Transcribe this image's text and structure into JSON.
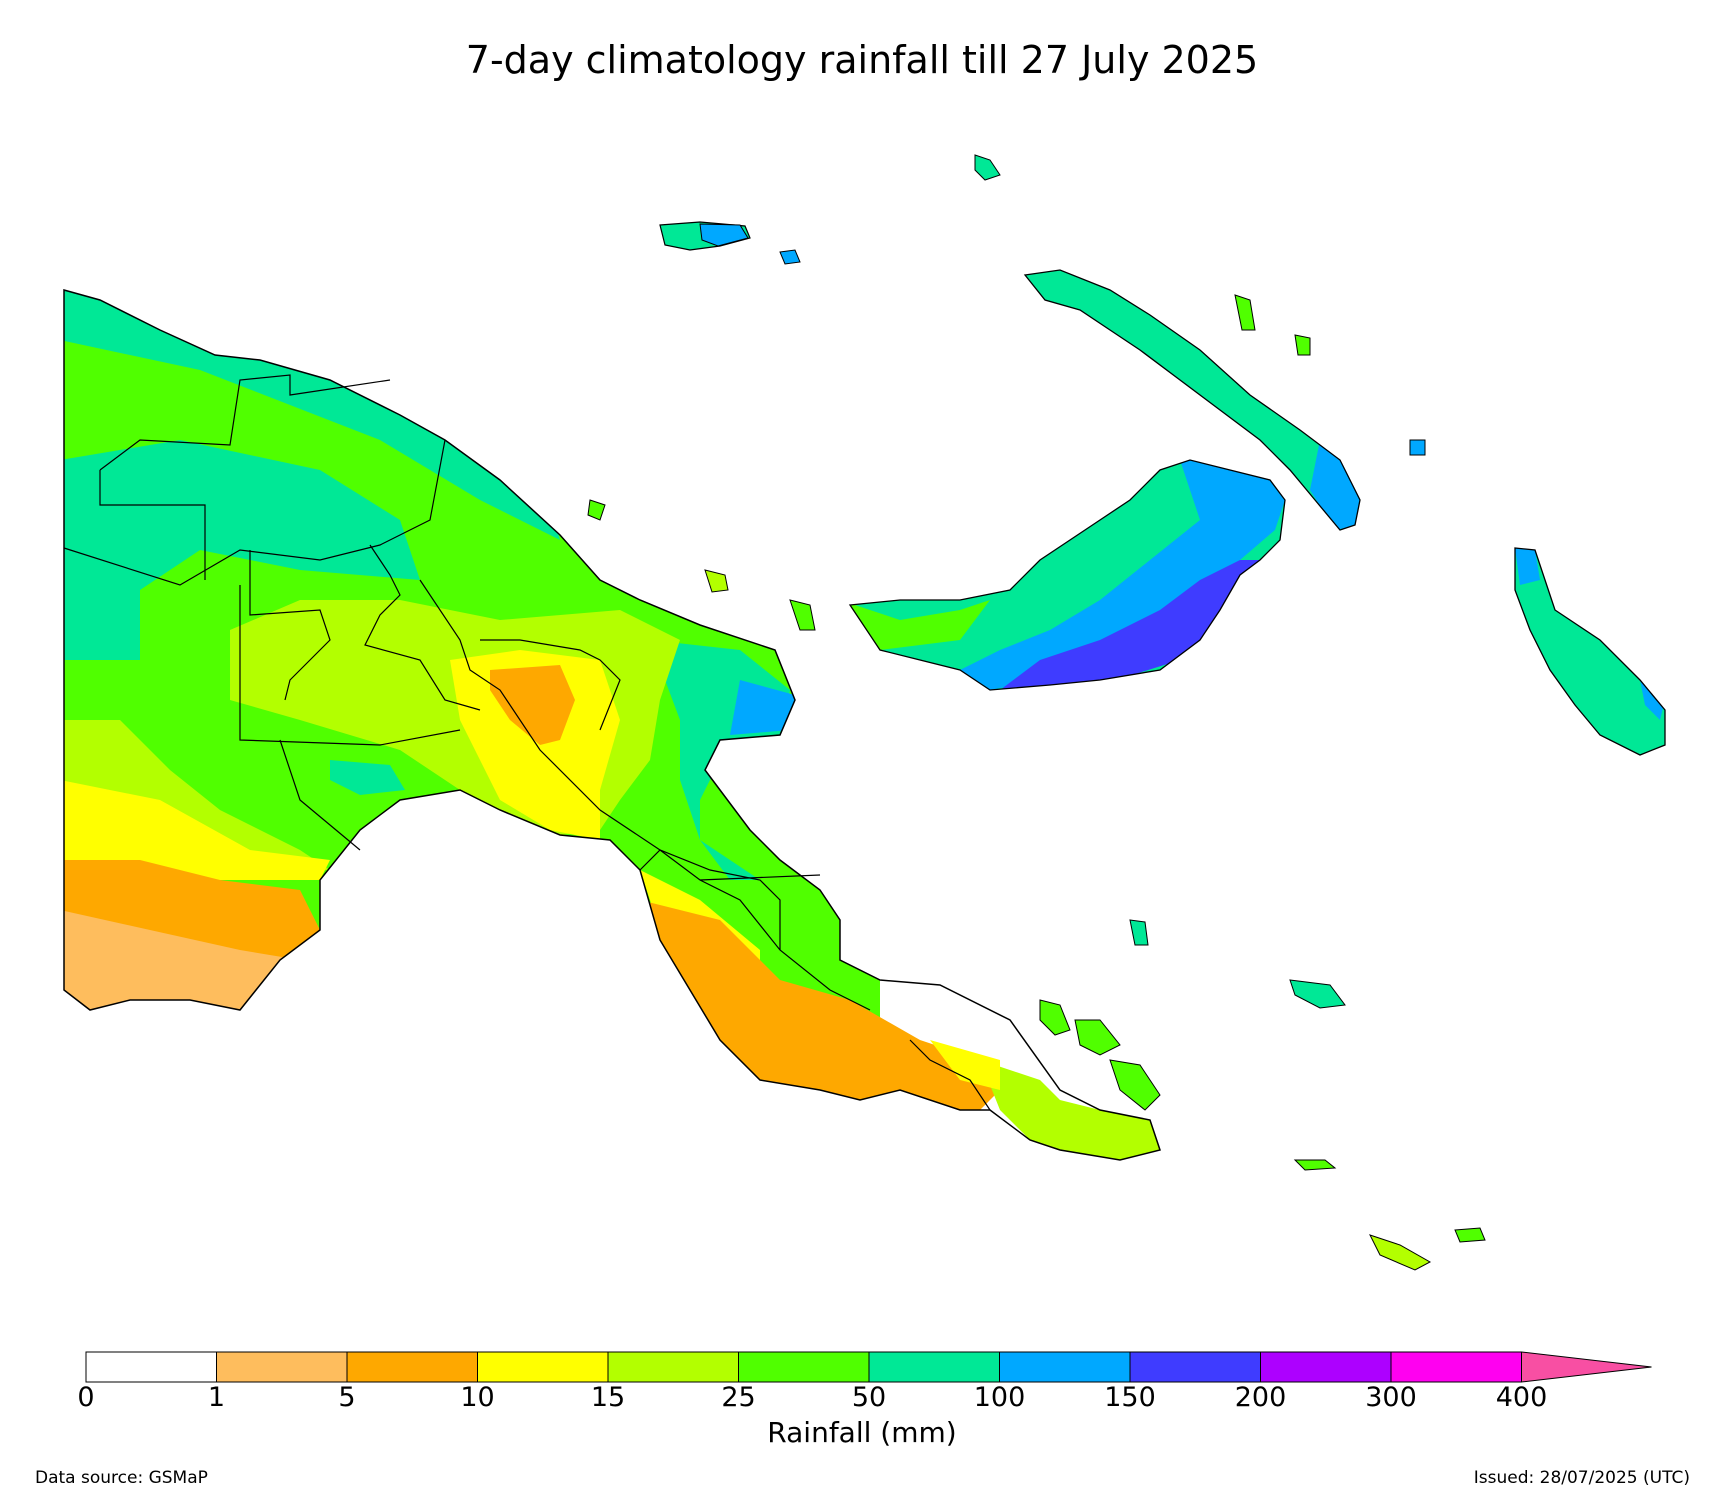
{
  "title": "7-day climatology rainfall till 27 July 2025",
  "colorbar": {
    "label": "Rainfall (mm)",
    "ticks": [
      "0",
      "1",
      "5",
      "10",
      "15",
      "25",
      "50",
      "100",
      "150",
      "200",
      "300",
      "400"
    ],
    "bins": [
      {
        "from": "0",
        "to": "1",
        "color": "#ffffff"
      },
      {
        "from": "1",
        "to": "5",
        "color": "#febd5d"
      },
      {
        "from": "5",
        "to": "10",
        "color": "#fea800"
      },
      {
        "from": "10",
        "to": "15",
        "color": "#ffff00"
      },
      {
        "from": "15",
        "to": "25",
        "color": "#b3ff00"
      },
      {
        "from": "25",
        "to": "50",
        "color": "#50ff00"
      },
      {
        "from": "50",
        "to": "100",
        "color": "#00e896"
      },
      {
        "from": "100",
        "to": "150",
        "color": "#00a8ff"
      },
      {
        "from": "150",
        "to": "200",
        "color": "#3f3cff"
      },
      {
        "from": "200",
        "to": "300",
        "color": "#ad00ff"
      },
      {
        "from": "300",
        "to": "400",
        "color": "#ff00f0"
      }
    ],
    "extend_color": "#f84fa3"
  },
  "footer": {
    "source": "Data source: GSMaP",
    "issued": "Issued: 28/07/2025 (UTC)"
  }
}
